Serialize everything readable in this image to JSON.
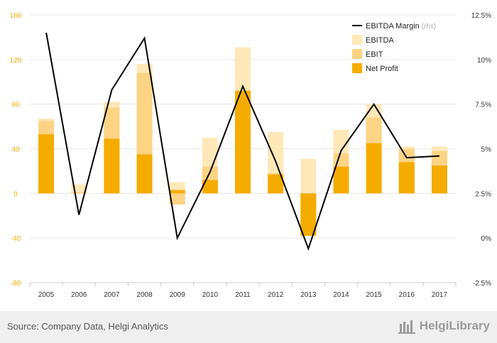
{
  "chart_data": {
    "type": "bar",
    "stacked": false,
    "categories": [
      "2005",
      "2006",
      "2007",
      "2008",
      "2009",
      "2010",
      "2011",
      "2012",
      "2013",
      "2014",
      "2015",
      "2016",
      "2017"
    ],
    "series": [
      {
        "name": "EBITDA",
        "type": "bar",
        "axis": "left",
        "color": "#ffe8b8",
        "values": [
          67,
          8,
          82,
          116,
          10,
          50,
          131,
          55,
          31,
          57,
          80,
          42,
          42
        ]
      },
      {
        "name": "EBIT",
        "type": "bar",
        "axis": "left",
        "color": "#fdd384",
        "values": [
          65,
          1,
          77,
          108,
          -10,
          24,
          92,
          18,
          -36,
          36,
          68,
          40,
          38
        ]
      },
      {
        "name": "Net Profit",
        "type": "bar",
        "axis": "left",
        "color": "#f5ac00",
        "values": [
          53,
          0,
          49,
          35,
          3,
          12,
          92,
          17,
          -38,
          24,
          45,
          28,
          25
        ]
      },
      {
        "name": "EBITDA Margin",
        "legend_suffix": "(rhs)",
        "type": "line",
        "axis": "right",
        "color": "#000000",
        "values": [
          11.5,
          1.3,
          8.3,
          11.2,
          0.0,
          3.7,
          8.5,
          4.3,
          -0.6,
          4.9,
          7.5,
          4.5,
          4.6
        ]
      }
    ],
    "y_left": {
      "ticks": [
        160,
        120,
        80,
        40,
        0,
        -40,
        -80
      ],
      "ylim": [
        -80,
        160
      ],
      "tick_color": "#f5ac00"
    },
    "y_right": {
      "tick_labels": [
        "12.5%",
        "10%",
        "7.5%",
        "5%",
        "2.5%",
        "0%",
        "-2.5%"
      ],
      "ylim": [
        -2.5,
        12.5
      ]
    },
    "legend": {
      "position": "top-right"
    },
    "grid": true,
    "title": "",
    "xlabel": "",
    "ylabel": ""
  },
  "footer": {
    "source": "Source: Company Data, Helgi Analytics",
    "logo_text": "HelgiLibrary"
  }
}
